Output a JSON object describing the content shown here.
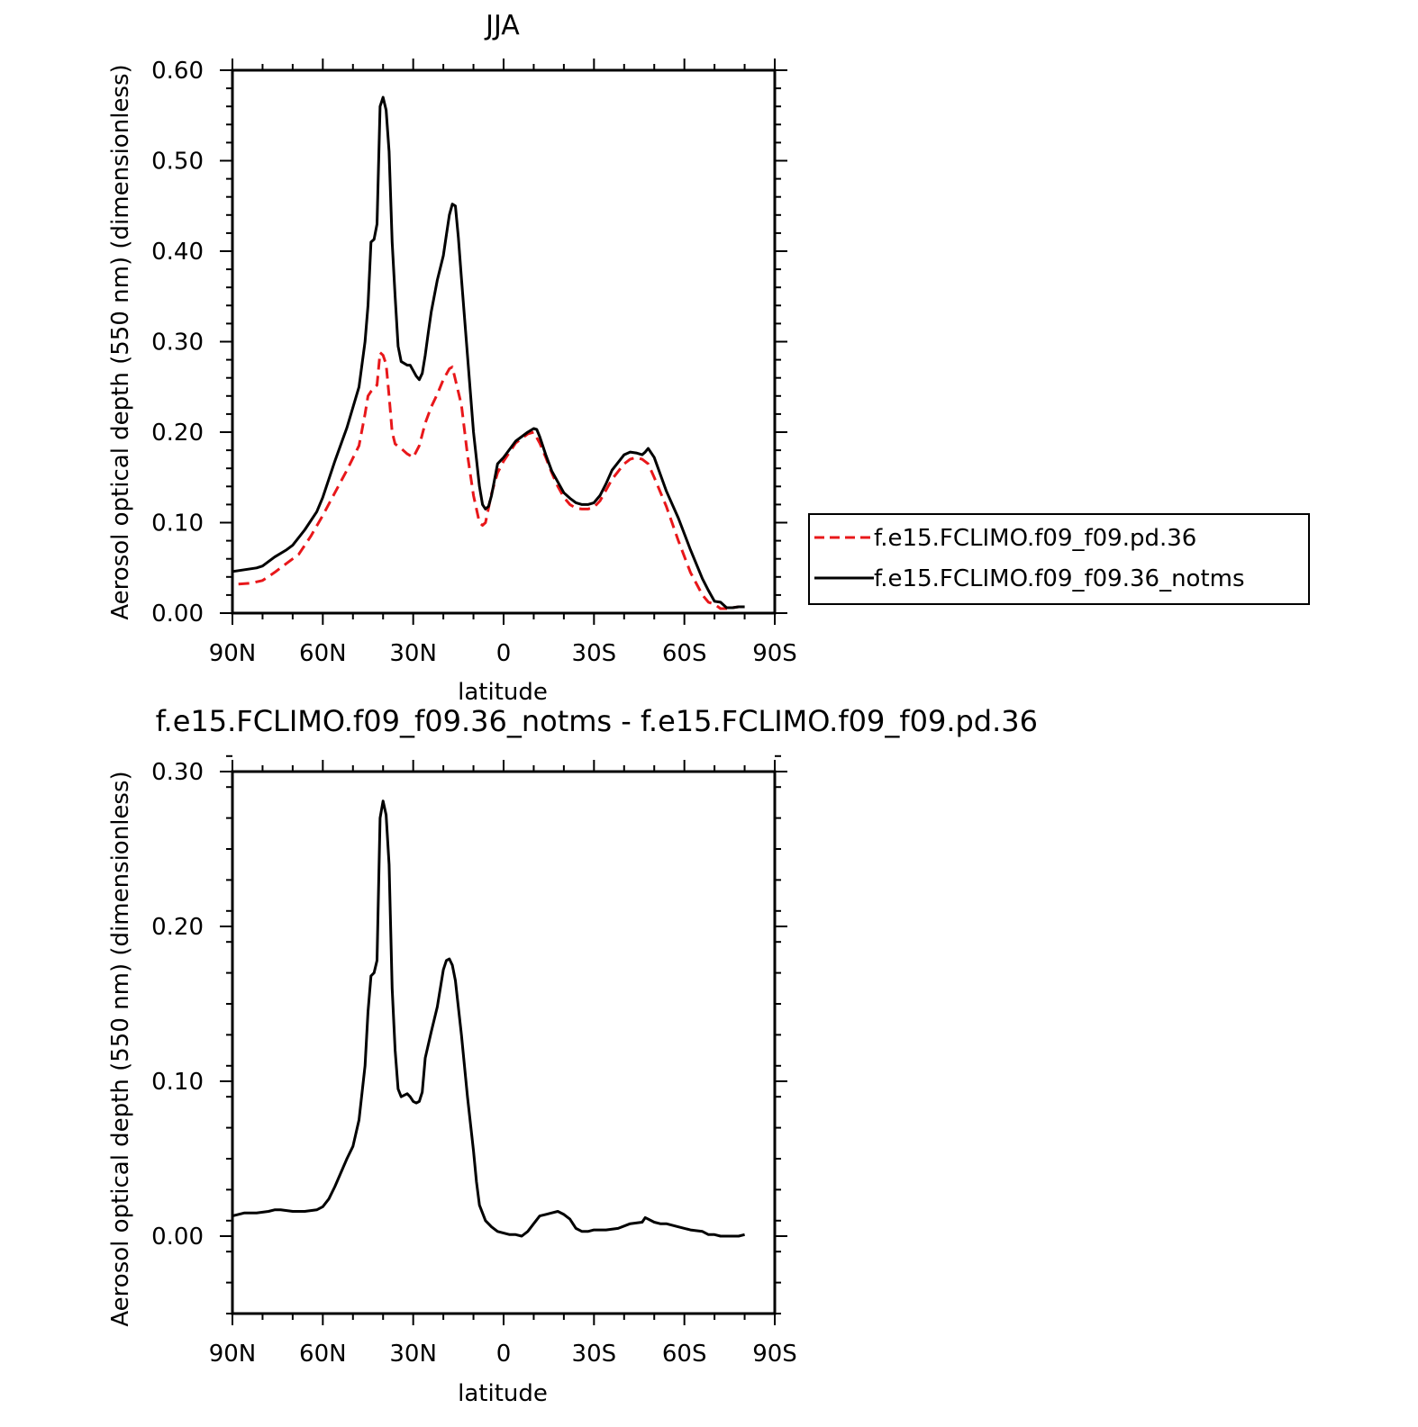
{
  "chart_data": [
    {
      "type": "line",
      "title": "JJA",
      "xlabel": "latitude",
      "ylabel": "Aerosol optical depth (550 nm) (dimensionless)",
      "xlim": [
        90,
        -90
      ],
      "ylim": [
        0,
        0.6
      ],
      "xticks": [
        {
          "v": 90,
          "label": "90N"
        },
        {
          "v": 60,
          "label": "60N"
        },
        {
          "v": 30,
          "label": "30N"
        },
        {
          "v": 0,
          "label": "0"
        },
        {
          "v": -30,
          "label": "30S"
        },
        {
          "v": -60,
          "label": "60S"
        },
        {
          "v": -90,
          "label": "90S"
        }
      ],
      "yticks": [
        {
          "v": 0,
          "label": "0.00"
        },
        {
          "v": 0.1,
          "label": "0.10"
        },
        {
          "v": 0.2,
          "label": "0.20"
        },
        {
          "v": 0.3,
          "label": "0.30"
        },
        {
          "v": 0.4,
          "label": "0.40"
        },
        {
          "v": 0.5,
          "label": "0.50"
        },
        {
          "v": 0.6,
          "label": "0.60"
        }
      ],
      "legend_position": "right",
      "series": [
        {
          "name": "f.e15.FCLIMO.f09_f09.pd.36",
          "color": "#e8171a",
          "dash": "dashed",
          "x": [
            88,
            84,
            80,
            76,
            72,
            68,
            64,
            60,
            56,
            52,
            48,
            46,
            45,
            44,
            42,
            41,
            40,
            39,
            38,
            37,
            36,
            34,
            32,
            30,
            28,
            26,
            24,
            22,
            20,
            18,
            17,
            16,
            14,
            12,
            10,
            8,
            7,
            6,
            4,
            2,
            0,
            -4,
            -8,
            -10,
            -12,
            -14,
            -16,
            -18,
            -20,
            -22,
            -24,
            -26,
            -28,
            -30,
            -32,
            -36,
            -40,
            -42,
            -44,
            -46,
            -48,
            -50,
            -54,
            -58,
            -62,
            -66,
            -68,
            -70,
            -72,
            -74,
            -76,
            -78,
            -80
          ],
          "y": [
            0.032,
            0.033,
            0.036,
            0.045,
            0.055,
            0.065,
            0.085,
            0.108,
            0.133,
            0.158,
            0.185,
            0.22,
            0.24,
            0.245,
            0.252,
            0.288,
            0.285,
            0.275,
            0.24,
            0.2,
            0.187,
            0.182,
            0.176,
            0.172,
            0.185,
            0.21,
            0.228,
            0.242,
            0.258,
            0.27,
            0.272,
            0.258,
            0.23,
            0.175,
            0.13,
            0.1,
            0.097,
            0.1,
            0.132,
            0.155,
            0.168,
            0.188,
            0.198,
            0.2,
            0.188,
            0.172,
            0.155,
            0.14,
            0.128,
            0.12,
            0.116,
            0.115,
            0.115,
            0.117,
            0.124,
            0.148,
            0.165,
            0.17,
            0.172,
            0.17,
            0.165,
            0.15,
            0.118,
            0.08,
            0.045,
            0.02,
            0.012,
            0.01,
            0.005,
            0.005,
            0.006,
            0.007,
            0.007
          ]
        },
        {
          "name": "f.e15.FCLIMO.f09_f09.36_notms",
          "color": "#000000",
          "dash": "solid",
          "x": [
            90,
            86,
            82,
            80,
            76,
            72,
            70,
            66,
            62,
            60,
            56,
            52,
            48,
            46,
            45,
            44,
            43,
            42,
            41,
            40,
            39,
            38,
            37,
            36,
            35,
            34,
            32,
            31,
            30,
            29,
            28,
            27,
            26,
            25,
            24,
            22,
            20,
            19,
            18,
            17,
            16,
            15,
            14,
            12,
            10,
            8,
            7,
            6,
            5,
            4,
            2,
            0,
            -4,
            -8,
            -10,
            -11,
            -12,
            -14,
            -16,
            -18,
            -20,
            -22,
            -24,
            -26,
            -28,
            -30,
            -32,
            -34,
            -36,
            -40,
            -42,
            -44,
            -46,
            -47,
            -48,
            -50,
            -54,
            -58,
            -62,
            -66,
            -68,
            -70,
            -72,
            -74,
            -76,
            -78,
            -80
          ],
          "y": [
            0.046,
            0.048,
            0.05,
            0.052,
            0.062,
            0.07,
            0.075,
            0.092,
            0.112,
            0.128,
            0.168,
            0.205,
            0.25,
            0.3,
            0.34,
            0.41,
            0.413,
            0.43,
            0.56,
            0.57,
            0.556,
            0.51,
            0.41,
            0.35,
            0.295,
            0.278,
            0.274,
            0.274,
            0.268,
            0.262,
            0.258,
            0.265,
            0.285,
            0.31,
            0.333,
            0.368,
            0.395,
            0.418,
            0.44,
            0.452,
            0.45,
            0.415,
            0.37,
            0.285,
            0.2,
            0.14,
            0.12,
            0.115,
            0.118,
            0.13,
            0.165,
            0.172,
            0.19,
            0.2,
            0.204,
            0.203,
            0.195,
            0.175,
            0.157,
            0.145,
            0.133,
            0.127,
            0.122,
            0.12,
            0.12,
            0.122,
            0.13,
            0.143,
            0.158,
            0.175,
            0.178,
            0.177,
            0.175,
            0.178,
            0.182,
            0.172,
            0.135,
            0.105,
            0.07,
            0.038,
            0.025,
            0.013,
            0.012,
            0.006,
            0.006,
            0.007,
            0.007
          ]
        }
      ]
    },
    {
      "type": "line",
      "title": "f.e15.FCLIMO.f09_f09.36_notms - f.e15.FCLIMO.f09_f09.pd.36",
      "xlabel": "latitude",
      "ylabel": "Aerosol optical depth (550 nm) (dimensionless)",
      "xlim": [
        90,
        -90
      ],
      "ylim": [
        -0.05,
        0.3
      ],
      "xticks": [
        {
          "v": 90,
          "label": "90N"
        },
        {
          "v": 60,
          "label": "60N"
        },
        {
          "v": 30,
          "label": "30N"
        },
        {
          "v": 0,
          "label": "0"
        },
        {
          "v": -30,
          "label": "30S"
        },
        {
          "v": -60,
          "label": "60S"
        },
        {
          "v": -90,
          "label": "90S"
        }
      ],
      "yticks": [
        {
          "v": 0,
          "label": "0.00"
        },
        {
          "v": 0.1,
          "label": "0.10"
        },
        {
          "v": 0.2,
          "label": "0.20"
        },
        {
          "v": 0.3,
          "label": "0.30"
        }
      ],
      "series": [
        {
          "name": "",
          "color": "#000000",
          "dash": "solid",
          "x": [
            90,
            86,
            82,
            78,
            76,
            74,
            70,
            66,
            62,
            60,
            58,
            56,
            52,
            50,
            48,
            46,
            45,
            44,
            43,
            42,
            41,
            40,
            39,
            38,
            37,
            36,
            35,
            34,
            32,
            31,
            30,
            29,
            28,
            27,
            26,
            24,
            22,
            20,
            19,
            18,
            17,
            16,
            14,
            12,
            10,
            9,
            8,
            6,
            4,
            2,
            0,
            -2,
            -4,
            -6,
            -8,
            -10,
            -12,
            -14,
            -16,
            -18,
            -20,
            -22,
            -24,
            -26,
            -28,
            -30,
            -34,
            -38,
            -42,
            -46,
            -47,
            -48,
            -50,
            -52,
            -54,
            -58,
            -62,
            -66,
            -68,
            -70,
            -72,
            -74,
            -76,
            -78,
            -80
          ],
          "y": [
            0.013,
            0.015,
            0.015,
            0.016,
            0.017,
            0.017,
            0.016,
            0.016,
            0.017,
            0.019,
            0.024,
            0.032,
            0.05,
            0.058,
            0.075,
            0.11,
            0.145,
            0.168,
            0.17,
            0.178,
            0.27,
            0.281,
            0.272,
            0.24,
            0.16,
            0.12,
            0.095,
            0.09,
            0.092,
            0.09,
            0.087,
            0.086,
            0.087,
            0.093,
            0.115,
            0.132,
            0.148,
            0.172,
            0.178,
            0.179,
            0.175,
            0.165,
            0.13,
            0.09,
            0.055,
            0.035,
            0.02,
            0.01,
            0.006,
            0.003,
            0.002,
            0.001,
            0.001,
            0.0,
            0.003,
            0.008,
            0.013,
            0.014,
            0.015,
            0.016,
            0.014,
            0.011,
            0.005,
            0.003,
            0.003,
            0.004,
            0.004,
            0.005,
            0.008,
            0.009,
            0.012,
            0.011,
            0.009,
            0.008,
            0.008,
            0.006,
            0.004,
            0.003,
            0.001,
            0.001,
            0.0,
            0.0,
            0.0,
            0.0,
            0.001
          ]
        }
      ]
    }
  ]
}
